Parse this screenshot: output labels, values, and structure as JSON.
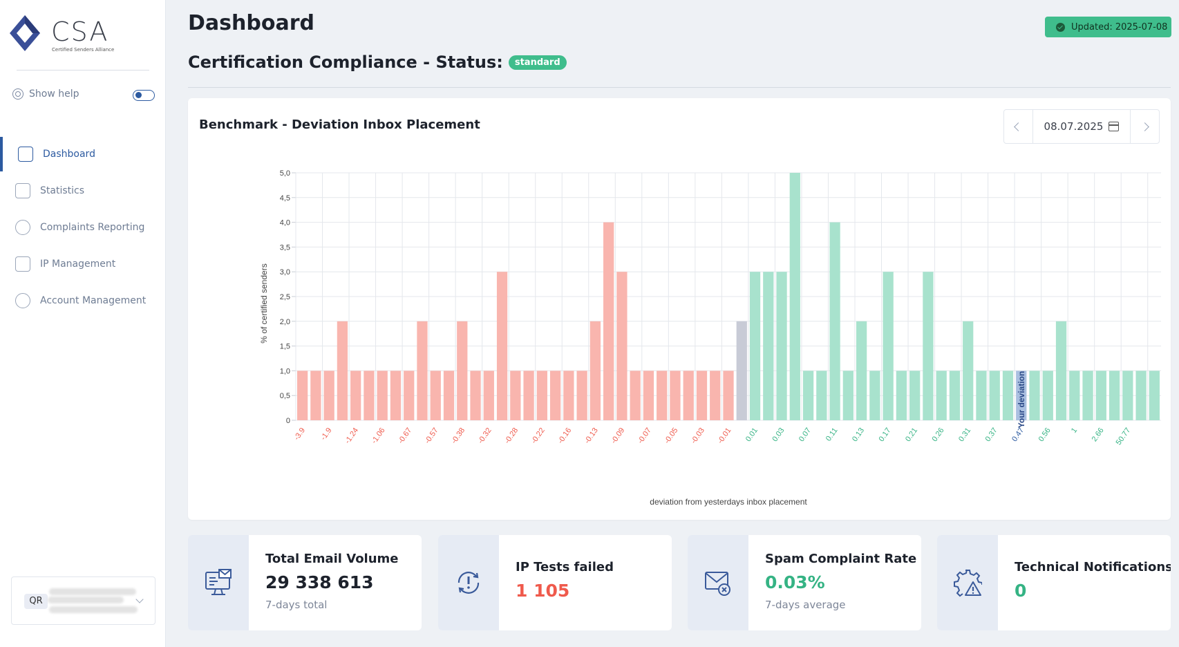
{
  "sidebar": {
    "logo_text": "CSA",
    "logo_subtitle": "Certified Senders Alliance",
    "help_label": "Show help",
    "user_initials": "QR",
    "items": [
      {
        "label": "Dashboard",
        "icon": "dashboard-icon",
        "active": true
      },
      {
        "label": "Statistics",
        "icon": "statistics-icon",
        "active": false
      },
      {
        "label": "Complaints Reporting",
        "icon": "complaints-icon",
        "active": false
      },
      {
        "label": "IP Management",
        "icon": "ip-management-icon",
        "active": false
      },
      {
        "label": "Account Management",
        "icon": "account-management-icon",
        "active": false
      }
    ]
  },
  "header": {
    "title": "Dashboard",
    "updated": "Updated: 2025-07-08",
    "subtitle": "Certification Compliance - Status:",
    "status": "standard"
  },
  "colors": {
    "accent": "#2c5aa0",
    "success": "#3fbd8c",
    "negative_bar": "#f9b5ae",
    "positive_bar": "#a8e2cd",
    "neutral_bar": "#c8cbd6",
    "you_bar": "#aabfe0",
    "negative_text": "#ef5a4c",
    "positive_text": "#35b384"
  },
  "chart": {
    "title": "Benchmark - Deviation Inbox Placement",
    "date": "08.07.2025"
  },
  "chart_data": {
    "type": "bar",
    "ylabel": "% of certified senders",
    "xlabel": "deviation from yesterdays inbox placement",
    "ylim": [
      0,
      5
    ],
    "yticks": [
      "0",
      "0,5",
      "1,0",
      "1,5",
      "2,0",
      "2,5",
      "3,0",
      "3,5",
      "4,0",
      "4,5",
      "5,0"
    ],
    "grid": true,
    "values": [
      1,
      1,
      1,
      2,
      1,
      1,
      1,
      1,
      1,
      2,
      1,
      1,
      2,
      1,
      1,
      3,
      1,
      1,
      1,
      1,
      1,
      1,
      2,
      4,
      3,
      1,
      1,
      1,
      1,
      1,
      1,
      1,
      1,
      2,
      3,
      3,
      3,
      5,
      1,
      1,
      4,
      1,
      2,
      1,
      3,
      1,
      1,
      3,
      1,
      1,
      2,
      1,
      1,
      1,
      1,
      1,
      1,
      2,
      1,
      1,
      1,
      1,
      1,
      1,
      1
    ],
    "categories": [
      "-3.9",
      "",
      "-1.9",
      "",
      "-1.24",
      "",
      "-1.06",
      "",
      "-0.67",
      "",
      "-0.57",
      "",
      "-0.38",
      "",
      "-0.32",
      "",
      "-0.28",
      "",
      "-0.22",
      "",
      "-0.16",
      "",
      "-0.13",
      "",
      "-0.09",
      "",
      "-0.07",
      "",
      "-0.05",
      "",
      "-0.03",
      "",
      "-0.01",
      "",
      "0.01",
      "",
      "0.03",
      "",
      "0.07",
      "",
      "0.11",
      "",
      "0.13",
      "",
      "0.17",
      "",
      "0.21",
      "",
      "0.26",
      "",
      "0.31",
      "",
      "0.37",
      "",
      "0.47",
      "",
      "0.56",
      "",
      "1",
      "",
      "2.66",
      "",
      "50.77",
      "",
      ""
    ],
    "zero_index": 33,
    "your_index": 54,
    "your_label": "Your deviation"
  },
  "stats": [
    {
      "label": "Total Email Volume",
      "value": "29 338 613",
      "note": "7-days total",
      "icon": "email-volume-icon",
      "value_color": "#1d222c"
    },
    {
      "label": "IP Tests failed",
      "value": "1 105",
      "note": "",
      "icon": "ip-test-icon",
      "value_color": "#ef5a4c"
    },
    {
      "label": "Spam Complaint Rate",
      "value": "0.03%",
      "note": "7-days average",
      "icon": "spam-complaint-icon",
      "value_color": "#35b384"
    },
    {
      "label": "Technical Notifications",
      "value": "0",
      "note": "",
      "icon": "technical-notification-icon",
      "value_color": "#35b384"
    }
  ]
}
